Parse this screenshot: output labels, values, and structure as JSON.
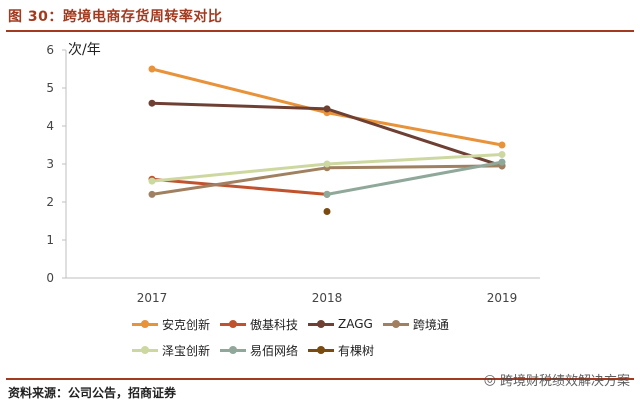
{
  "header": {
    "title": "图 30：跨境电商存货周转率对比"
  },
  "footer": {
    "source": "资料来源：公司公告，招商证券"
  },
  "watermark": {
    "text": "跨境财税绩效解决方案"
  },
  "chart_data": {
    "type": "line",
    "title": "",
    "ylabel": "次/年",
    "xlabel": "",
    "categories": [
      "2017",
      "2018",
      "2019"
    ],
    "ylim": [
      0,
      6
    ],
    "yticks": [
      0,
      1,
      2,
      3,
      4,
      5,
      6
    ],
    "grid": false,
    "legend_position": "bottom",
    "series": [
      {
        "name": "安克创新",
        "color": "#e8923a",
        "values": [
          5.5,
          4.35,
          3.5
        ]
      },
      {
        "name": "傲基科技",
        "color": "#c0532e",
        "values": [
          2.6,
          2.2,
          null
        ]
      },
      {
        "name": "ZAGG",
        "color": "#6e3f33",
        "values": [
          4.6,
          4.45,
          2.95
        ]
      },
      {
        "name": "跨境通",
        "color": "#a08060",
        "values": [
          2.2,
          2.9,
          2.95
        ]
      },
      {
        "name": "泽宝创新",
        "color": "#cdd8a0",
        "values": [
          2.55,
          3.0,
          3.25
        ]
      },
      {
        "name": "易佰网络",
        "color": "#8fa89a",
        "values": [
          null,
          2.2,
          3.05
        ]
      },
      {
        "name": "有棵树",
        "color": "#7a4a10",
        "values": [
          null,
          1.75,
          null
        ]
      }
    ]
  }
}
